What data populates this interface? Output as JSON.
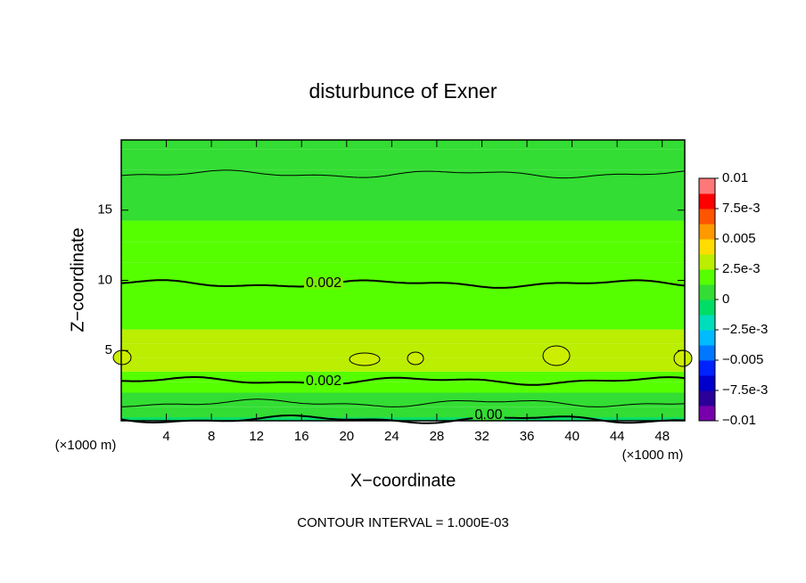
{
  "chart_data": {
    "type": "contour",
    "title": "disturbunce of Exner",
    "xlabel": "X−coordinate",
    "ylabel": "Z−coordinate",
    "xunit": "(×1000 m)",
    "yunit": "(×1000 m)",
    "note": "CONTOUR INTERVAL = 1.000E-03",
    "xlim": [
      0,
      50
    ],
    "xticks": [
      4,
      8,
      12,
      16,
      20,
      24,
      28,
      32,
      36,
      40,
      44,
      48
    ],
    "ylim": [
      0,
      20
    ],
    "yticks": [
      5,
      10,
      15
    ],
    "field": {
      "z": [
        0,
        0.5,
        1.5,
        2.5,
        3,
        4,
        5,
        6,
        7,
        9,
        10.5,
        12,
        13.5,
        15,
        17,
        18.7,
        20
      ],
      "values": [
        -0.0001,
        0.0004,
        0.0012,
        0.0018,
        0.0021,
        0.0027,
        0.00295,
        0.0026,
        0.0023,
        0.0021,
        0.0019,
        0.0016,
        0.0013,
        0.0011,
        0.00105,
        0.0009,
        0.0007
      ]
    },
    "contour_levels": [
      0,
      0.001,
      0.002,
      0.003
    ],
    "contour_labels": [
      "0.002",
      "0.002",
      "0.00"
    ],
    "colorbar": {
      "clim": [
        -0.01,
        0.01
      ],
      "ticks": [
        {
          "value": -0.01,
          "label": "−0.01"
        },
        {
          "value": -0.0075,
          "label": "−7.5e-3"
        },
        {
          "value": -0.005,
          "label": "−0.005"
        },
        {
          "value": -0.0025,
          "label": "−2.5e-3"
        },
        0,
        {
          "value": 0.0025,
          "label": "2.5e-3"
        },
        0.005,
        {
          "value": 0.0075,
          "label": "7.5e-3"
        },
        0.01
      ],
      "colors": [
        "#7700aa",
        "#2a0099",
        "#0000cc",
        "#0022ff",
        "#0077ff",
        "#00bbff",
        "#00ddbb",
        "#00dd66",
        "#33dd33",
        "#55ff00",
        "#bbee00",
        "#ffdd00",
        "#ff9900",
        "#ff5500",
        "#ff0000",
        "#ff7878"
      ]
    }
  }
}
